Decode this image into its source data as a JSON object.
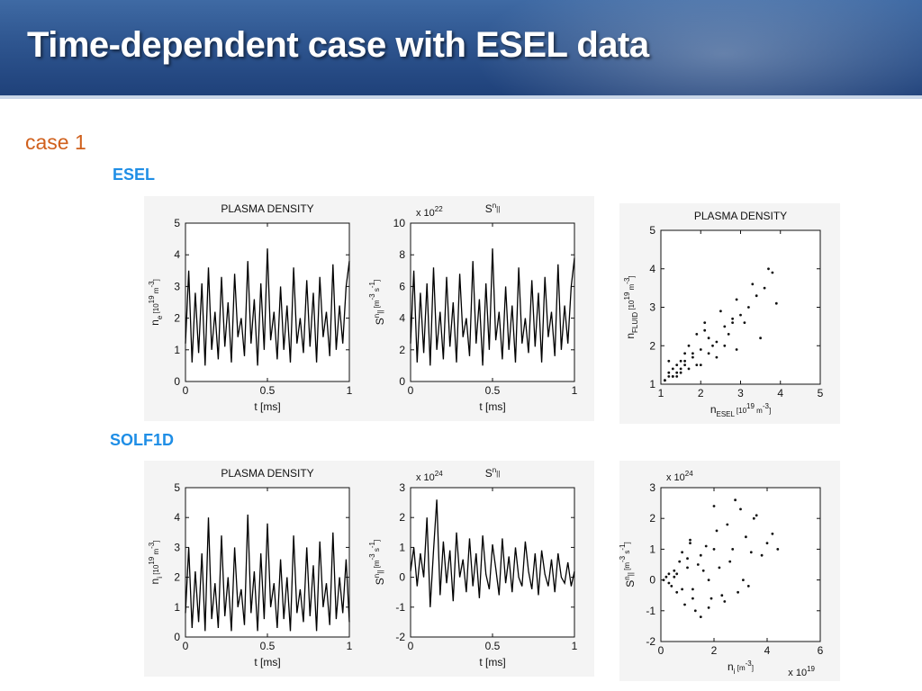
{
  "slide": {
    "title": "Time-dependent case with ESEL data",
    "case_label": "case 1",
    "section_top": "ESEL",
    "section_bottom": "SOLF1D"
  },
  "colors": {
    "header_top": "#3f6aa4",
    "header_bottom": "#1f417a",
    "case_label": "#d0601c",
    "section_label": "#1f8ee6"
  },
  "chart_data": [
    {
      "id": "esel_density",
      "type": "line",
      "title": "PLASMA DENSITY",
      "xlabel": "t [ms]",
      "ylabel": "n_e [10^19 m^-3]",
      "xlim": [
        0,
        1
      ],
      "ylim": [
        0,
        5
      ],
      "xticks": [
        "0",
        "0.5",
        "1"
      ],
      "yticks": [
        "0",
        "1",
        "2",
        "3",
        "4",
        "5"
      ],
      "multiplier": "",
      "series": [
        {
          "x": [
            0,
            0.02,
            0.04,
            0.06,
            0.08,
            0.1,
            0.12,
            0.14,
            0.16,
            0.18,
            0.2,
            0.22,
            0.24,
            0.26,
            0.28,
            0.3,
            0.32,
            0.34,
            0.36,
            0.38,
            0.4,
            0.42,
            0.44,
            0.46,
            0.48,
            0.5,
            0.52,
            0.54,
            0.56,
            0.58,
            0.6,
            0.62,
            0.64,
            0.66,
            0.68,
            0.7,
            0.72,
            0.74,
            0.76,
            0.78,
            0.8,
            0.82,
            0.84,
            0.86,
            0.88,
            0.9,
            0.92,
            0.94,
            0.96,
            0.98,
            1.0
          ],
          "y": [
            1.2,
            3.5,
            0.6,
            2.8,
            0.9,
            3.1,
            0.5,
            3.6,
            1.0,
            2.2,
            0.7,
            3.3,
            1.1,
            2.5,
            0.6,
            3.4,
            1.4,
            2.0,
            0.8,
            3.8,
            1.2,
            2.6,
            0.5,
            3.1,
            1.0,
            4.2,
            1.3,
            2.2,
            0.7,
            3.0,
            1.0,
            2.4,
            0.6,
            3.6,
            1.2,
            2.0,
            0.9,
            3.2,
            1.1,
            2.8,
            0.6,
            3.3,
            1.4,
            2.2,
            0.8,
            3.7,
            1.0,
            2.4,
            1.2,
            3.0,
            3.8
          ]
        }
      ]
    },
    {
      "id": "esel_source",
      "type": "line",
      "title": "S^n_||",
      "xlabel": "t [ms]",
      "ylabel": "S^n_|| [m^-3 s^-1]",
      "xlim": [
        0,
        1
      ],
      "ylim": [
        0,
        10
      ],
      "xticks": [
        "0",
        "0.5",
        "1"
      ],
      "yticks": [
        "0",
        "2",
        "4",
        "6",
        "8",
        "10"
      ],
      "multiplier": "x 10^22",
      "series": [
        {
          "x": [
            0,
            0.02,
            0.04,
            0.06,
            0.08,
            0.1,
            0.12,
            0.14,
            0.16,
            0.18,
            0.2,
            0.22,
            0.24,
            0.26,
            0.28,
            0.3,
            0.32,
            0.34,
            0.36,
            0.38,
            0.4,
            0.42,
            0.44,
            0.46,
            0.48,
            0.5,
            0.52,
            0.54,
            0.56,
            0.58,
            0.6,
            0.62,
            0.64,
            0.66,
            0.68,
            0.7,
            0.72,
            0.74,
            0.76,
            0.78,
            0.8,
            0.82,
            0.84,
            0.86,
            0.88,
            0.9,
            0.92,
            0.94,
            0.96,
            0.98,
            1.0
          ],
          "y": [
            2.4,
            7.0,
            1.2,
            5.6,
            1.8,
            6.2,
            1.0,
            7.2,
            2.0,
            4.4,
            1.4,
            6.6,
            2.2,
            5.0,
            1.2,
            6.8,
            2.8,
            4.0,
            1.6,
            7.6,
            2.4,
            5.2,
            1.0,
            6.2,
            2.0,
            8.4,
            2.6,
            4.4,
            1.4,
            6.0,
            2.0,
            4.8,
            1.2,
            7.2,
            2.4,
            4.0,
            1.8,
            6.4,
            2.2,
            5.6,
            1.2,
            6.6,
            2.8,
            4.4,
            1.6,
            7.4,
            2.0,
            4.8,
            2.4,
            6.0,
            7.8
          ]
        }
      ]
    },
    {
      "id": "esel_scatter",
      "type": "scatter",
      "title": "PLASMA DENSITY",
      "xlabel": "n_ESEL [10^19 m^-3]",
      "ylabel": "n_FLUID [10^19 m^-3]",
      "xlim": [
        1,
        5
      ],
      "ylim": [
        1,
        5
      ],
      "xticks": [
        "1",
        "2",
        "3",
        "4",
        "5"
      ],
      "yticks": [
        "1",
        "2",
        "3",
        "4",
        "5"
      ],
      "multiplier": "",
      "series": [
        {
          "x": [
            1.1,
            1.2,
            1.3,
            1.4,
            1.5,
            1.2,
            1.6,
            1.8,
            1.3,
            1.7,
            2.0,
            2.2,
            1.5,
            1.9,
            2.4,
            2.6,
            1.4,
            2.1,
            2.8,
            3.0,
            1.6,
            2.3,
            2.5,
            3.2,
            3.4,
            1.8,
            2.7,
            2.9,
            3.6,
            3.8,
            1.3,
            2.0,
            2.6,
            3.1,
            3.5,
            1.5,
            2.2,
            1.7,
            1.2,
            2.4,
            3.3,
            3.7,
            1.9,
            2.8,
            1.1,
            1.4,
            2.9,
            3.9,
            1.6,
            2.1
          ],
          "y": [
            1.1,
            1.3,
            1.2,
            1.5,
            1.4,
            1.6,
            1.8,
            1.7,
            1.4,
            2.0,
            1.9,
            2.2,
            1.6,
            2.3,
            2.1,
            2.5,
            1.3,
            2.4,
            2.6,
            2.8,
            1.5,
            2.0,
            2.9,
            3.0,
            3.3,
            1.8,
            2.3,
            3.2,
            3.5,
            3.9,
            1.2,
            1.5,
            2.0,
            2.6,
            2.2,
            1.3,
            1.8,
            1.4,
            1.2,
            1.7,
            3.6,
            4.0,
            1.5,
            2.7,
            1.1,
            1.2,
            1.9,
            3.1,
            1.6,
            2.6
          ]
        }
      ]
    },
    {
      "id": "solf_density",
      "type": "line",
      "title": "PLASMA DENSITY",
      "xlabel": "t [ms]",
      "ylabel": "n_i [10^19 m^-3]",
      "xlim": [
        0,
        1
      ],
      "ylim": [
        0,
        5
      ],
      "xticks": [
        "0",
        "0.5",
        "1"
      ],
      "yticks": [
        "0",
        "1",
        "2",
        "3",
        "4",
        "5"
      ],
      "multiplier": "",
      "series": [
        {
          "x": [
            0,
            0.02,
            0.04,
            0.06,
            0.08,
            0.1,
            0.12,
            0.14,
            0.16,
            0.18,
            0.2,
            0.22,
            0.24,
            0.26,
            0.28,
            0.3,
            0.32,
            0.34,
            0.36,
            0.38,
            0.4,
            0.42,
            0.44,
            0.46,
            0.48,
            0.5,
            0.52,
            0.54,
            0.56,
            0.58,
            0.6,
            0.62,
            0.64,
            0.66,
            0.68,
            0.7,
            0.72,
            0.74,
            0.76,
            0.78,
            0.8,
            0.82,
            0.84,
            0.86,
            0.88,
            0.9,
            0.92,
            0.94,
            0.96,
            0.98,
            1.0
          ],
          "y": [
            0.8,
            3.0,
            0.3,
            2.2,
            0.5,
            2.8,
            0.2,
            4.0,
            0.6,
            1.8,
            0.3,
            3.4,
            0.7,
            2.0,
            0.2,
            3.0,
            1.0,
            1.6,
            0.4,
            4.1,
            0.8,
            2.2,
            0.2,
            2.8,
            0.6,
            3.8,
            1.0,
            1.8,
            0.3,
            2.6,
            0.6,
            2.0,
            0.2,
            3.4,
            0.8,
            1.6,
            0.5,
            3.0,
            0.7,
            2.4,
            0.2,
            3.2,
            1.0,
            1.8,
            0.4,
            3.5,
            0.6,
            2.0,
            0.8,
            2.6,
            0.5
          ]
        }
      ]
    },
    {
      "id": "solf_source",
      "type": "line",
      "title": "S^n_||",
      "xlabel": "t [ms]",
      "ylabel": "S^n_|| [m^-3 s^-1]",
      "xlim": [
        0,
        1
      ],
      "ylim": [
        -2,
        3
      ],
      "xticks": [
        "0",
        "0.5",
        "1"
      ],
      "yticks": [
        "-2",
        "-1",
        "0",
        "1",
        "2",
        "3"
      ],
      "multiplier": "x 10^24",
      "series": [
        {
          "x": [
            0,
            0.02,
            0.04,
            0.06,
            0.08,
            0.1,
            0.12,
            0.14,
            0.16,
            0.18,
            0.2,
            0.22,
            0.24,
            0.26,
            0.28,
            0.3,
            0.32,
            0.34,
            0.36,
            0.38,
            0.4,
            0.42,
            0.44,
            0.46,
            0.48,
            0.5,
            0.52,
            0.54,
            0.56,
            0.58,
            0.6,
            0.62,
            0.64,
            0.66,
            0.68,
            0.7,
            0.72,
            0.74,
            0.76,
            0.78,
            0.8,
            0.82,
            0.84,
            0.86,
            0.88,
            0.9,
            0.92,
            0.94,
            0.96,
            0.98,
            1.0
          ],
          "y": [
            0.2,
            1.0,
            -0.3,
            0.8,
            0.0,
            2.0,
            -1.0,
            0.9,
            2.6,
            -0.6,
            1.2,
            -0.2,
            0.9,
            -0.8,
            1.5,
            0.0,
            0.6,
            -0.5,
            1.3,
            -0.3,
            0.8,
            -0.7,
            1.4,
            0.1,
            -0.4,
            1.1,
            0.3,
            -0.6,
            1.3,
            -0.2,
            0.7,
            -0.5,
            1.0,
            0.0,
            -0.3,
            1.2,
            0.2,
            -0.4,
            0.8,
            -0.6,
            0.9,
            0.1,
            -0.3,
            0.6,
            -0.5,
            0.8,
            0.0,
            -0.2,
            0.5,
            -0.3,
            0.2
          ]
        }
      ]
    },
    {
      "id": "solf_scatter",
      "type": "scatter",
      "title": "",
      "xlabel": "n_i [m^-3]",
      "ylabel": "S^n_|| [m^-3 s^-1]",
      "xlim": [
        0,
        6
      ],
      "ylim": [
        -2,
        3
      ],
      "xticks": [
        "0",
        "2",
        "4",
        "6"
      ],
      "yticks": [
        "-2",
        "-1",
        "0",
        "1",
        "2",
        "3"
      ],
      "multiplier": "x 10^24",
      "xmultiplier": "x 10^19",
      "series": [
        {
          "x": [
            0.1,
            0.3,
            0.5,
            0.8,
            1.0,
            1.2,
            1.5,
            0.6,
            1.8,
            2.0,
            2.3,
            0.4,
            1.1,
            2.6,
            2.9,
            3.2,
            0.9,
            1.4,
            1.7,
            3.5,
            3.8,
            0.2,
            0.7,
            1.3,
            2.1,
            2.4,
            4.0,
            3.0,
            1.6,
            0.5,
            2.7,
            3.3,
            1.9,
            0.8,
            1.2,
            2.2,
            3.6,
            4.2,
            1.0,
            1.5,
            2.5,
            3.1,
            0.3,
            0.6,
            2.8,
            1.1,
            1.8,
            3.4,
            4.4,
            2.0
          ],
          "y": [
            0.0,
            -0.1,
            0.1,
            -0.3,
            0.4,
            -0.6,
            0.8,
            0.2,
            -0.9,
            1.0,
            -0.5,
            -0.2,
            1.2,
            0.6,
            -0.4,
            1.4,
            -0.8,
            0.5,
            1.1,
            2.0,
            0.8,
            0.1,
            0.6,
            -1.0,
            1.6,
            -0.7,
            1.2,
            2.3,
            0.3,
            0.3,
            1.0,
            -0.2,
            -0.6,
            0.9,
            -0.3,
            0.4,
            2.1,
            1.5,
            0.7,
            -1.2,
            1.8,
            0.0,
            0.2,
            -0.4,
            2.6,
            1.3,
            0.0,
            0.9,
            1.0,
            2.4
          ]
        }
      ]
    }
  ]
}
